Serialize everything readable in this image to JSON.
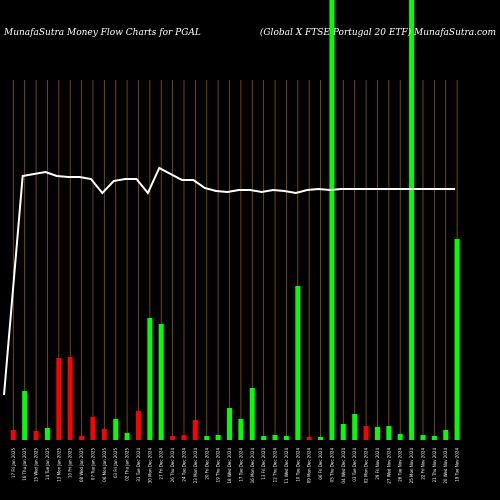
{
  "header": {
    "left_title": "MunafaSutra  Money Flow  Charts for PGAL",
    "right_title": "(Global X   FTSE Portugal 20   ETF) MunafaSutra.com"
  },
  "colors": {
    "background": "#000000",
    "grid": "#8a5a00",
    "up": "#00ff00",
    "down": "#ff0000",
    "line": "#ffffff"
  },
  "chart_data": {
    "type": "bar",
    "grid": true,
    "x": [
      "Fri 17 Jan 2025",
      "Thu 16 Jan 2025",
      "Wed 15 Jan 2025",
      "Tue 14 Jan 2025",
      "Mon 13 Jan 2025",
      "Fri 10 Jan 2025",
      "Wed 08 Jan 2025",
      "Tue 07 Jan 2025",
      "Mon 06 Jan 2025",
      "Fri 03 Jan 2025",
      "Thu 02 Jan 2025",
      "Tue 31 Dec 2024",
      "Mon 30 Dec 2024",
      "Fri 27 Dec 2024",
      "Thu 26 Dec 2024",
      "Tue 24 Dec 2024",
      "Mon 23 Dec 2024",
      "Fri 20 Dec 2024",
      "Thu 19 Dec 2024",
      "Wed 18 Dec 2024",
      "Tue 17 Dec 2024",
      "Mon 16 Dec 2024",
      "Fri 13 Dec 2024",
      "Thu 12 Dec 2024",
      "Wed 11 Dec 2024",
      "Tue 10 Dec 2024",
      "Mon 09 Dec 2024",
      "Fri 06 Dec 2024",
      "Thu 05 Dec 2024",
      "Wed 04 Dec 2024",
      "Tue 03 Dec 2024",
      "Mon 02 Dec 2024",
      "Fri 29 Nov 2024",
      "Wed 27 Nov 2024",
      "Tue 26 Nov 2024",
      "Mon 25 Nov 2024",
      "Fri 22 Nov 2024",
      "Thu 21 Nov 2024",
      "Wed 20 Nov 2024",
      "Tue 19 Nov 2024"
    ],
    "x_tick_labels": [
      "17 Fri Jan 2025",
      "16 Thu Jan 2025",
      "15 Wed Jan 2025",
      "14 Tue Jan 2025",
      "13 Mon Jan 2025",
      "10 Fri Jan 2025",
      "08 Wed Jan 2025",
      "07 Tue Jan 2025",
      "06 Mon Jan 2025",
      "03 Fri Jan 2025",
      "02 Thu Jan 2025",
      "31 Tue Dec 2024",
      "30 Mon Dec 2024",
      "27 Fri Dec 2024",
      "26 Thu Dec 2024",
      "24 Tue Dec 2024",
      "23 Mon Dec 2024",
      "20 Fri Dec 2024",
      "19 Thu Dec 2024",
      "18 Wed Dec 2024",
      "17 Tue Dec 2024",
      "16 Mon Dec 2024",
      "13 Fri Dec 2024",
      "12 Thu Dec 2024",
      "11 Wed Dec 2024",
      "10 Tue Dec 2024",
      "09 Mon Dec 2024",
      "06 Fri Dec 2024",
      "05 Thu Dec 2024",
      "04 Wed Dec 2024",
      "03 Tue Dec 2024",
      "02 Mon Dec 2024",
      "29 Fri Nov 2024",
      "27 Wed Nov 2024",
      "26 Tue Nov 2024",
      "25 Mon Nov 2024",
      "22 Fri Nov 2024",
      "21 Thu Nov 2024",
      "20 Wed Nov 2024",
      "19 Tue Nov 2024"
    ],
    "bars": [
      {
        "value": 10,
        "dir": "down"
      },
      {
        "value": 49,
        "dir": "up"
      },
      {
        "value": 9,
        "dir": "down"
      },
      {
        "value": 12,
        "dir": "up"
      },
      {
        "value": 82,
        "dir": "down"
      },
      {
        "value": 83,
        "dir": "down"
      },
      {
        "value": 4,
        "dir": "down"
      },
      {
        "value": 23,
        "dir": "down"
      },
      {
        "value": 11,
        "dir": "down"
      },
      {
        "value": 21,
        "dir": "up"
      },
      {
        "value": 7,
        "dir": "up"
      },
      {
        "value": 29,
        "dir": "down"
      },
      {
        "value": 122,
        "dir": "up"
      },
      {
        "value": 116,
        "dir": "up"
      },
      {
        "value": 4,
        "dir": "down"
      },
      {
        "value": 5,
        "dir": "down"
      },
      {
        "value": 20,
        "dir": "down"
      },
      {
        "value": 4,
        "dir": "up"
      },
      {
        "value": 5,
        "dir": "up"
      },
      {
        "value": 32,
        "dir": "up"
      },
      {
        "value": 21,
        "dir": "up"
      },
      {
        "value": 52,
        "dir": "up"
      },
      {
        "value": 4,
        "dir": "up"
      },
      {
        "value": 5,
        "dir": "up"
      },
      {
        "value": 4,
        "dir": "up"
      },
      {
        "value": 154,
        "dir": "up"
      },
      {
        "value": 3,
        "dir": "down"
      },
      {
        "value": 3,
        "dir": "up"
      },
      {
        "value": 440,
        "dir": "up"
      },
      {
        "value": 16,
        "dir": "up"
      },
      {
        "value": 26,
        "dir": "up"
      },
      {
        "value": 14,
        "dir": "down"
      },
      {
        "value": 13,
        "dir": "up"
      },
      {
        "value": 14,
        "dir": "up"
      },
      {
        "value": 6,
        "dir": "up"
      },
      {
        "value": 440,
        "dir": "up"
      },
      {
        "value": 5,
        "dir": "up"
      },
      {
        "value": 4,
        "dir": "up"
      },
      {
        "value": 10,
        "dir": "up"
      },
      {
        "value": 201,
        "dir": "up"
      }
    ],
    "price_line": [
      32,
      176,
      174,
      172,
      176,
      177,
      177,
      179,
      193,
      181,
      179,
      179,
      193,
      168,
      174,
      180,
      180,
      188,
      191,
      192,
      190,
      190,
      192,
      190,
      191,
      193,
      190,
      189,
      190,
      189,
      189,
      189,
      189,
      189,
      189,
      189,
      189,
      189,
      189,
      189
    ],
    "ylim": [
      0,
      440
    ]
  }
}
